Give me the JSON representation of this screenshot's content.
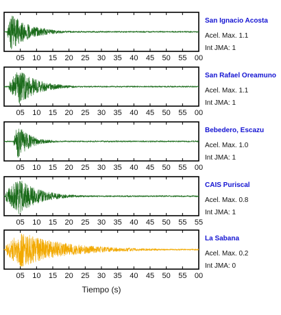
{
  "chart_data": {
    "type": "line",
    "xlabel": "Tiempo (s)",
    "panels": [
      {
        "station": "San Ignacio Acosta",
        "accel_label": "Acel. Max. 1.1",
        "intensity_label": "Int JMA: 1",
        "color": "#1a6b1a",
        "tick_labels": [
          "05",
          "10",
          "15",
          "20",
          "25",
          "30",
          "35",
          "40",
          "45",
          "50",
          "55",
          "00"
        ],
        "onset_s": 1.0,
        "peak_s": 2.2,
        "decay_s": 6.0
      },
      {
        "station": "San Rafael Oreamuno",
        "accel_label": "Acel. Max. 1.1",
        "intensity_label": "Int JMA: 1",
        "color": "#1a6b1a",
        "tick_labels": [
          "05",
          "10",
          "15",
          "20",
          "25",
          "30",
          "35",
          "40",
          "45",
          "50",
          "55",
          "00"
        ],
        "onset_s": 1.5,
        "peak_s": 4.5,
        "decay_s": 6.0
      },
      {
        "station": "Bebedero, Escazu",
        "accel_label": "Acel. Max. 1.0",
        "intensity_label": "Int JMA: 1",
        "color": "#1a6b1a",
        "tick_labels": [
          "05",
          "10",
          "15",
          "20",
          "25",
          "30",
          "35",
          "40",
          "45",
          "50",
          "55",
          "00"
        ],
        "onset_s": 3.0,
        "peak_s": 4.0,
        "decay_s": 4.0
      },
      {
        "station": "CAIS Puriscal",
        "accel_label": "Acel. Max. 0.8",
        "intensity_label": "Int JMA: 1",
        "color": "#1a6b1a",
        "tick_labels": [
          "05",
          "10",
          "15",
          "20",
          "25",
          "30",
          "35",
          "40",
          "45",
          "50",
          "55",
          "55"
        ],
        "onset_s": 0.5,
        "peak_s": 4.5,
        "decay_s": 6.5
      },
      {
        "station": "La Sabana",
        "accel_label": "Acel. Max. 0.2",
        "intensity_label": "Int JMA: 0",
        "color": "#f2a900",
        "tick_labels": [
          "05",
          "10",
          "15",
          "20",
          "25",
          "30",
          "35",
          "40",
          "45",
          "50",
          "55",
          "00"
        ],
        "onset_s": 0.5,
        "peak_s": 5.0,
        "decay_s": 14.0
      }
    ],
    "x_range": [
      0,
      60
    ],
    "tick_positions_s": [
      5,
      10,
      15,
      20,
      25,
      30,
      35,
      40,
      45,
      50,
      55,
      60
    ]
  }
}
